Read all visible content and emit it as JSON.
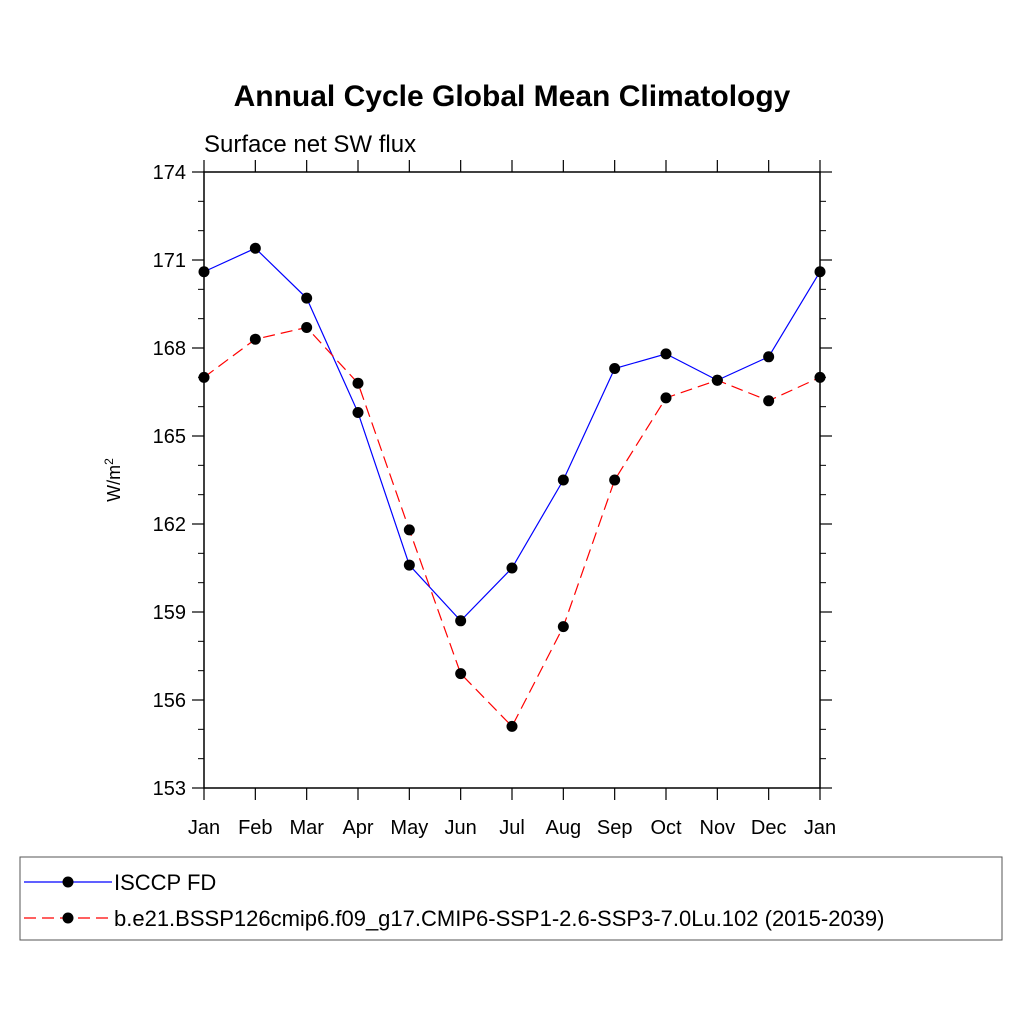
{
  "chart_data": {
    "type": "line",
    "title": "Annual Cycle Global Mean Climatology",
    "subtitle": "Surface net SW flux",
    "ylabel": "W/m",
    "ylabel_superscript": "2",
    "xlabel": "",
    "ylim": [
      153,
      174
    ],
    "yticks": [
      153,
      156,
      159,
      162,
      165,
      168,
      171,
      174
    ],
    "categories": [
      "Jan",
      "Feb",
      "Mar",
      "Apr",
      "May",
      "Jun",
      "Jul",
      "Aug",
      "Sep",
      "Oct",
      "Nov",
      "Dec",
      "Jan"
    ],
    "grid": false,
    "legend_position": "bottom",
    "series": [
      {
        "name": "ISCCP FD",
        "color": "#0000ff",
        "line_style": "solid",
        "marker": "filled-circle",
        "values": [
          170.6,
          171.4,
          169.7,
          165.8,
          160.6,
          158.7,
          160.5,
          163.5,
          167.3,
          167.8,
          166.9,
          167.7,
          170.6
        ]
      },
      {
        "name": "b.e21.BSSP126cmip6.f09_g17.CMIP6-SSP1-2.6-SSP3-7.0Lu.102 (2015-2039)",
        "color": "#ff0000",
        "line_style": "dashed",
        "marker": "filled-circle",
        "values": [
          167.0,
          168.3,
          168.7,
          166.8,
          161.8,
          156.9,
          155.1,
          158.5,
          163.5,
          166.3,
          166.9,
          166.2,
          167.0
        ]
      }
    ]
  }
}
